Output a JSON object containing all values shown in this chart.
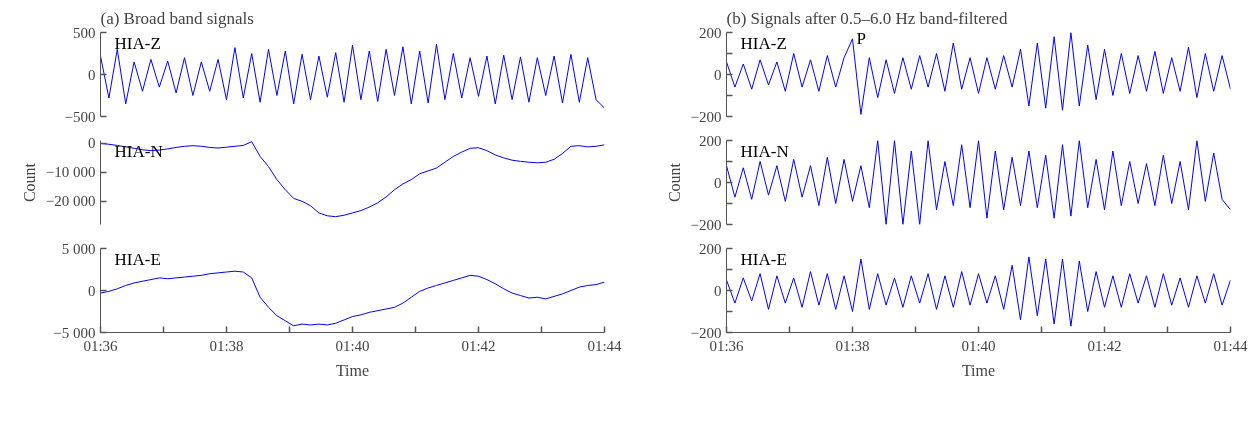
{
  "chart_data": [
    {
      "type": "line",
      "title": "(a) Broad band signals",
      "tick_labels": "y",
      "xlim": [
        1.6,
        1.73333
      ],
      "ylim": [
        -500,
        500
      ],
      "yticks": [
        {
          "value": -500,
          "label": "−500"
        },
        0,
        500
      ],
      "x": [
        1.6,
        1.60222,
        1.60444,
        1.60667,
        1.60889,
        1.61111,
        1.61333,
        1.61556,
        1.61778,
        1.62,
        1.62222,
        1.62444,
        1.62667,
        1.62889,
        1.63111,
        1.63333,
        1.63556,
        1.63778,
        1.64,
        1.64222,
        1.64444,
        1.64667,
        1.64889,
        1.65111,
        1.65333,
        1.65556,
        1.65778,
        1.66,
        1.66222,
        1.66444,
        1.66667,
        1.66889,
        1.67111,
        1.67333,
        1.67556,
        1.67778,
        1.68,
        1.68222,
        1.68444,
        1.68667,
        1.68889,
        1.69111,
        1.69333,
        1.69556,
        1.69778,
        1.7,
        1.70222,
        1.70444,
        1.70667,
        1.70889,
        1.71111,
        1.71333,
        1.71556,
        1.71778,
        1.72,
        1.72222,
        1.72444,
        1.72667,
        1.72889,
        1.73111,
        1.73333
      ],
      "series": [
        {
          "name": "HIA-Z",
          "color": "#0000ff",
          "values": [
            220,
            -280,
            300,
            -350,
            150,
            -200,
            180,
            -150,
            160,
            -220,
            200,
            -250,
            150,
            -200,
            180,
            -300,
            320,
            -280,
            250,
            -330,
            300,
            -250,
            280,
            -350,
            240,
            -300,
            220,
            -270,
            260,
            -330,
            350,
            -300,
            280,
            -320,
            300,
            -250,
            330,
            -350,
            280,
            -340,
            360,
            -300,
            250,
            -280,
            200,
            -260,
            220,
            -350,
            230,
            -300,
            210,
            -330,
            200,
            -250,
            220,
            -340,
            240,
            -330,
            200,
            -300,
            -400
          ]
        }
      ]
    },
    {
      "type": "line",
      "ylabel": "Count",
      "tick_labels": "y",
      "xlim": [
        1.6,
        1.73333
      ],
      "ylim": [
        -28000,
        1000
      ],
      "yticks": [
        {
          "value": -20000,
          "label": "−20 000"
        },
        {
          "value": -10000,
          "label": "−10 000"
        },
        0
      ],
      "x": [
        1.6,
        1.60222,
        1.60444,
        1.60667,
        1.60889,
        1.61111,
        1.61333,
        1.61556,
        1.61778,
        1.62,
        1.62222,
        1.62444,
        1.62667,
        1.62889,
        1.63111,
        1.63333,
        1.63556,
        1.63778,
        1.64,
        1.64222,
        1.64444,
        1.64667,
        1.64889,
        1.65111,
        1.65333,
        1.65556,
        1.65778,
        1.66,
        1.66222,
        1.66444,
        1.66667,
        1.66889,
        1.67111,
        1.67333,
        1.67556,
        1.67778,
        1.68,
        1.68222,
        1.68444,
        1.68667,
        1.68889,
        1.69111,
        1.69333,
        1.69556,
        1.69778,
        1.7,
        1.70222,
        1.70444,
        1.70667,
        1.70889,
        1.71111,
        1.71333,
        1.71556,
        1.71778,
        1.72,
        1.72222,
        1.72444,
        1.72667,
        1.72889,
        1.73111,
        1.73333
      ],
      "series": [
        {
          "name": "HIA-N",
          "color": "#0000ff",
          "values": [
            0,
            -300,
            -700,
            -1200,
            -1700,
            -2200,
            -2500,
            -2300,
            -1900,
            -1400,
            -1000,
            -800,
            -1000,
            -1400,
            -1600,
            -1300,
            -1000,
            -700,
            600,
            -4500,
            -8000,
            -12500,
            -16000,
            -19000,
            -20000,
            -21500,
            -24000,
            -25000,
            -25300,
            -24800,
            -24000,
            -23200,
            -22000,
            -20500,
            -18500,
            -16000,
            -14000,
            -12500,
            -10500,
            -9500,
            -8500,
            -6500,
            -4500,
            -3000,
            -1700,
            -1500,
            -2500,
            -4000,
            -5000,
            -5800,
            -6200,
            -6500,
            -6700,
            -6500,
            -5500,
            -3500,
            -1000,
            -800,
            -1200,
            -1000,
            -500
          ]
        }
      ]
    },
    {
      "type": "line",
      "xlabel": "Time",
      "xlim": [
        1.6,
        1.73333
      ],
      "ylim": [
        -5000,
        5000
      ],
      "yticks": [
        {
          "value": -5000,
          "label": "−5 000"
        },
        0,
        {
          "value": 5000,
          "label": "5 000"
        }
      ],
      "xticks": [
        {
          "value": 1.6,
          "label": "01:36"
        },
        {
          "value": 1.61667,
          "label": null
        },
        {
          "value": 1.63333,
          "label": "01:38"
        },
        {
          "value": 1.65,
          "label": null
        },
        {
          "value": 1.66667,
          "label": "01:40"
        },
        {
          "value": 1.68333,
          "label": null
        },
        {
          "value": 1.7,
          "label": "01:42"
        },
        {
          "value": 1.71667,
          "label": null
        },
        {
          "value": 1.73333,
          "label": "01:44"
        }
      ],
      "x": [
        1.6,
        1.60222,
        1.60444,
        1.60667,
        1.60889,
        1.61111,
        1.61333,
        1.61556,
        1.61778,
        1.62,
        1.62222,
        1.62444,
        1.62667,
        1.62889,
        1.63111,
        1.63333,
        1.63556,
        1.63778,
        1.64,
        1.64222,
        1.64444,
        1.64667,
        1.64889,
        1.65111,
        1.65333,
        1.65556,
        1.65778,
        1.66,
        1.66222,
        1.66444,
        1.66667,
        1.66889,
        1.67111,
        1.67333,
        1.67556,
        1.67778,
        1.68,
        1.68222,
        1.68444,
        1.68667,
        1.68889,
        1.69111,
        1.69333,
        1.69556,
        1.69778,
        1.7,
        1.70222,
        1.70444,
        1.70667,
        1.70889,
        1.71111,
        1.71333,
        1.71556,
        1.71778,
        1.72,
        1.72222,
        1.72444,
        1.72667,
        1.72889,
        1.73111,
        1.73333
      ],
      "series": [
        {
          "name": "HIA-E",
          "color": "#0000ff",
          "values": [
            -300,
            -100,
            200,
            600,
            900,
            1100,
            1300,
            1500,
            1400,
            1500,
            1600,
            1700,
            1800,
            2000,
            2100,
            2200,
            2300,
            2200,
            1500,
            -800,
            -2000,
            -3000,
            -3600,
            -4200,
            -4000,
            -4100,
            -4000,
            -4100,
            -3900,
            -3500,
            -3100,
            -2900,
            -2600,
            -2400,
            -2200,
            -2000,
            -1500,
            -800,
            -100,
            300,
            600,
            900,
            1200,
            1500,
            1800,
            1700,
            1300,
            800,
            200,
            -300,
            -600,
            -900,
            -800,
            -1000,
            -700,
            -400,
            0,
            400,
            600,
            700,
            1000
          ]
        }
      ]
    },
    {
      "type": "line",
      "title": "(b) Signals after 0.5–6.0 Hz band-filtered",
      "tick_labels": "y",
      "xlim": [
        1.6,
        1.73333
      ],
      "ylim": [
        -200,
        200
      ],
      "yticks": [
        {
          "value": -200,
          "label": "−200"
        },
        {
          "value": -100,
          "label": null
        },
        0,
        {
          "value": 100,
          "label": null
        },
        200
      ],
      "annotations": [
        {
          "text": "P",
          "x": 1.63333,
          "y": 170
        }
      ],
      "x": [
        1.6,
        1.60222,
        1.60444,
        1.60667,
        1.60889,
        1.61111,
        1.61333,
        1.61556,
        1.61778,
        1.62,
        1.62222,
        1.62444,
        1.62667,
        1.62889,
        1.63111,
        1.63333,
        1.63556,
        1.63778,
        1.64,
        1.64222,
        1.64444,
        1.64667,
        1.64889,
        1.65111,
        1.65333,
        1.65556,
        1.65778,
        1.66,
        1.66222,
        1.66444,
        1.66667,
        1.66889,
        1.67111,
        1.67333,
        1.67556,
        1.67778,
        1.68,
        1.68222,
        1.68444,
        1.68667,
        1.68889,
        1.69111,
        1.69333,
        1.69556,
        1.69778,
        1.7,
        1.70222,
        1.70444,
        1.70667,
        1.70889,
        1.71111,
        1.71333,
        1.71556,
        1.71778,
        1.72,
        1.72222,
        1.72444,
        1.72667,
        1.72889,
        1.73111,
        1.73333
      ],
      "series": [
        {
          "name": "HIA-Z",
          "color": "#0000ff",
          "values": [
            60,
            -60,
            50,
            -70,
            70,
            -50,
            60,
            -80,
            100,
            -60,
            70,
            -80,
            90,
            -60,
            80,
            170,
            -190,
            80,
            -110,
            70,
            -90,
            80,
            -70,
            90,
            -60,
            100,
            -80,
            150,
            -70,
            80,
            -90,
            80,
            -70,
            90,
            -60,
            120,
            -150,
            150,
            -160,
            180,
            -170,
            200,
            -150,
            140,
            -120,
            120,
            -100,
            100,
            -90,
            90,
            -80,
            110,
            -90,
            80,
            -80,
            130,
            -110,
            100,
            -80,
            90,
            -70
          ]
        }
      ]
    },
    {
      "type": "line",
      "ylabel": "Count",
      "tick_labels": "y",
      "xlim": [
        1.6,
        1.73333
      ],
      "ylim": [
        -200,
        200
      ],
      "yticks": [
        {
          "value": -200,
          "label": "−200"
        },
        {
          "value": -100,
          "label": null
        },
        0,
        {
          "value": 100,
          "label": null
        },
        200
      ],
      "x": [
        1.6,
        1.60222,
        1.60444,
        1.60667,
        1.60889,
        1.61111,
        1.61333,
        1.61556,
        1.61778,
        1.62,
        1.62222,
        1.62444,
        1.62667,
        1.62889,
        1.63111,
        1.63333,
        1.63556,
        1.63778,
        1.64,
        1.64222,
        1.64444,
        1.64667,
        1.64889,
        1.65111,
        1.65333,
        1.65556,
        1.65778,
        1.66,
        1.66222,
        1.66444,
        1.66667,
        1.66889,
        1.67111,
        1.67333,
        1.67556,
        1.67778,
        1.68,
        1.68222,
        1.68444,
        1.68667,
        1.68889,
        1.69111,
        1.69333,
        1.69556,
        1.69778,
        1.7,
        1.70222,
        1.70444,
        1.70667,
        1.70889,
        1.71111,
        1.71333,
        1.71556,
        1.71778,
        1.72,
        1.72222,
        1.72444,
        1.72667,
        1.72889,
        1.73111,
        1.73333
      ],
      "series": [
        {
          "name": "HIA-N",
          "color": "#0000ff",
          "values": [
            80,
            -70,
            70,
            -80,
            100,
            -60,
            80,
            -90,
            110,
            -70,
            80,
            -110,
            120,
            -100,
            110,
            -90,
            80,
            -120,
            200,
            -200,
            200,
            -200,
            150,
            -200,
            200,
            -130,
            100,
            -110,
            180,
            -120,
            200,
            -170,
            150,
            -130,
            120,
            -110,
            150,
            -120,
            130,
            -170,
            180,
            -160,
            200,
            -120,
            110,
            -130,
            150,
            -110,
            100,
            -100,
            90,
            -110,
            130,
            -100,
            100,
            -130,
            200,
            -90,
            140,
            -80,
            -130
          ]
        }
      ]
    },
    {
      "type": "line",
      "xlabel": "Time",
      "xlim": [
        1.6,
        1.73333
      ],
      "ylim": [
        -200,
        200
      ],
      "yticks": [
        {
          "value": -200,
          "label": "−200"
        },
        {
          "value": -100,
          "label": null
        },
        0,
        {
          "value": 100,
          "label": null
        },
        200
      ],
      "xticks": [
        {
          "value": 1.6,
          "label": "01:36"
        },
        {
          "value": 1.61667,
          "label": null
        },
        {
          "value": 1.63333,
          "label": "01:38"
        },
        {
          "value": 1.65,
          "label": null
        },
        {
          "value": 1.66667,
          "label": "01:40"
        },
        {
          "value": 1.68333,
          "label": null
        },
        {
          "value": 1.7,
          "label": "01:42"
        },
        {
          "value": 1.71667,
          "label": null
        },
        {
          "value": 1.73333,
          "label": "01:44"
        }
      ],
      "x": [
        1.6,
        1.60222,
        1.60444,
        1.60667,
        1.60889,
        1.61111,
        1.61333,
        1.61556,
        1.61778,
        1.62,
        1.62222,
        1.62444,
        1.62667,
        1.62889,
        1.63111,
        1.63333,
        1.63556,
        1.63778,
        1.64,
        1.64222,
        1.64444,
        1.64667,
        1.64889,
        1.65111,
        1.65333,
        1.65556,
        1.65778,
        1.66,
        1.66222,
        1.66444,
        1.66667,
        1.66889,
        1.67111,
        1.67333,
        1.67556,
        1.67778,
        1.68,
        1.68222,
        1.68444,
        1.68667,
        1.68889,
        1.69111,
        1.69333,
        1.69556,
        1.69778,
        1.7,
        1.70222,
        1.70444,
        1.70667,
        1.70889,
        1.71111,
        1.71333,
        1.71556,
        1.71778,
        1.72,
        1.72222,
        1.72444,
        1.72667,
        1.72889,
        1.73111,
        1.73333
      ],
      "series": [
        {
          "name": "HIA-E",
          "color": "#0000ff",
          "values": [
            50,
            -60,
            60,
            -50,
            80,
            -90,
            70,
            -60,
            60,
            -80,
            90,
            -70,
            80,
            -90,
            70,
            -100,
            150,
            -90,
            80,
            -70,
            60,
            -80,
            70,
            -60,
            80,
            -90,
            70,
            -80,
            90,
            -70,
            80,
            -60,
            70,
            -90,
            120,
            -140,
            160,
            -120,
            150,
            -160,
            150,
            -170,
            140,
            -100,
            90,
            -80,
            70,
            -80,
            80,
            -60,
            70,
            -80,
            80,
            -70,
            60,
            -80,
            70,
            -60,
            80,
            -70,
            50
          ]
        }
      ]
    }
  ]
}
